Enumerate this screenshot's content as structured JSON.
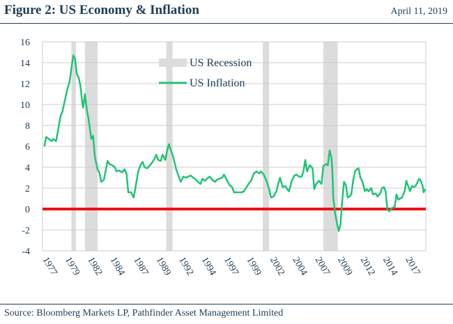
{
  "header": {
    "title": "Figure 2: US Economy & Inflation",
    "date": "April 11, 2019"
  },
  "footer": {
    "source": "Source: Bloomberg Markets LP, Pathfinder Asset Management Limited"
  },
  "colors": {
    "inflation": "#22c276",
    "zero_line": "#ee1111",
    "recession": "#dcdcdc",
    "text": "#1f3d57"
  },
  "chart_data": {
    "type": "line",
    "ylim": [
      -4,
      16
    ],
    "yticks": [
      "16",
      "14",
      "12",
      "10",
      "8",
      "6",
      "4",
      "2",
      "0",
      "-2",
      "-4"
    ],
    "yticks_values": [
      16,
      14,
      12,
      10,
      8,
      6,
      4,
      2,
      0,
      -2,
      -4
    ],
    "xlim": [
      1976.8,
      2019.25
    ],
    "xticks": [
      "1977",
      "1979",
      "1982",
      "1984",
      "1987",
      "1989",
      "1992",
      "1994",
      "1997",
      "1999",
      "2002",
      "2004",
      "2007",
      "2009",
      "2012",
      "2014",
      "2017"
    ],
    "xticks_values": [
      1976.8,
      1979.3,
      1981.8,
      1984.3,
      1986.9,
      1989.4,
      1991.9,
      1994.4,
      1996.9,
      1999.4,
      2002.0,
      2004.5,
      2007.0,
      2009.5,
      2012.0,
      2014.5,
      2017.0
    ],
    "grid": true,
    "legend": {
      "position": "top-center",
      "entries": [
        "US Recession",
        "US Inflation"
      ]
    },
    "zero_line": 0,
    "recessions": [
      {
        "start": 1980.0,
        "end": 1980.5
      },
      {
        "start": 1981.5,
        "end": 1982.9
      },
      {
        "start": 1990.5,
        "end": 1991.2
      },
      {
        "start": 2001.2,
        "end": 2001.9
      },
      {
        "start": 2007.9,
        "end": 2009.5
      }
    ],
    "series": [
      {
        "name": "US Inflation",
        "points": [
          [
            1977.0,
            6.0
          ],
          [
            1977.2,
            6.9
          ],
          [
            1977.5,
            6.7
          ],
          [
            1977.8,
            6.5
          ],
          [
            1978.0,
            6.7
          ],
          [
            1978.3,
            6.5
          ],
          [
            1978.5,
            7.4
          ],
          [
            1978.8,
            8.9
          ],
          [
            1979.0,
            9.3
          ],
          [
            1979.3,
            10.5
          ],
          [
            1979.5,
            11.3
          ],
          [
            1979.8,
            12.2
          ],
          [
            1980.0,
            13.5
          ],
          [
            1980.2,
            14.7
          ],
          [
            1980.4,
            14.4
          ],
          [
            1980.6,
            12.9
          ],
          [
            1980.8,
            12.6
          ],
          [
            1981.0,
            11.8
          ],
          [
            1981.2,
            10.2
          ],
          [
            1981.3,
            9.7
          ],
          [
            1981.5,
            11.0
          ],
          [
            1981.7,
            9.5
          ],
          [
            1981.9,
            8.6
          ],
          [
            1982.0,
            8.0
          ],
          [
            1982.2,
            6.7
          ],
          [
            1982.4,
            7.0
          ],
          [
            1982.6,
            5.0
          ],
          [
            1982.9,
            3.8
          ],
          [
            1983.1,
            3.5
          ],
          [
            1983.3,
            2.6
          ],
          [
            1983.6,
            2.8
          ],
          [
            1983.8,
            3.7
          ],
          [
            1984.0,
            4.6
          ],
          [
            1984.2,
            4.3
          ],
          [
            1984.5,
            4.2
          ],
          [
            1984.8,
            4.0
          ],
          [
            1985.0,
            3.6
          ],
          [
            1985.3,
            3.7
          ],
          [
            1985.6,
            3.5
          ],
          [
            1985.9,
            3.8
          ],
          [
            1986.1,
            3.4
          ],
          [
            1986.3,
            1.6
          ],
          [
            1986.6,
            1.6
          ],
          [
            1986.9,
            1.1
          ],
          [
            1987.1,
            2.1
          ],
          [
            1987.4,
            3.6
          ],
          [
            1987.7,
            4.3
          ],
          [
            1987.9,
            4.5
          ],
          [
            1988.1,
            4.0
          ],
          [
            1988.4,
            3.9
          ],
          [
            1988.7,
            4.2
          ],
          [
            1988.9,
            4.4
          ],
          [
            1989.2,
            4.8
          ],
          [
            1989.4,
            5.2
          ],
          [
            1989.6,
            4.7
          ],
          [
            1989.9,
            4.6
          ],
          [
            1990.1,
            5.2
          ],
          [
            1990.4,
            4.7
          ],
          [
            1990.6,
            5.6
          ],
          [
            1990.8,
            6.2
          ],
          [
            1991.0,
            5.7
          ],
          [
            1991.3,
            4.9
          ],
          [
            1991.6,
            3.8
          ],
          [
            1991.9,
            3.1
          ],
          [
            1992.1,
            2.6
          ],
          [
            1992.4,
            3.1
          ],
          [
            1992.7,
            3.0
          ],
          [
            1992.9,
            3.1
          ],
          [
            1993.2,
            3.2
          ],
          [
            1993.5,
            3.0
          ],
          [
            1993.8,
            2.8
          ],
          [
            1994.0,
            2.6
          ],
          [
            1994.3,
            2.4
          ],
          [
            1994.5,
            2.9
          ],
          [
            1994.8,
            2.7
          ],
          [
            1995.0,
            2.9
          ],
          [
            1995.3,
            3.1
          ],
          [
            1995.6,
            2.8
          ],
          [
            1995.9,
            2.6
          ],
          [
            1996.1,
            2.8
          ],
          [
            1996.4,
            2.9
          ],
          [
            1996.7,
            3.0
          ],
          [
            1996.9,
            3.3
          ],
          [
            1997.2,
            2.8
          ],
          [
            1997.5,
            2.3
          ],
          [
            1997.8,
            2.1
          ],
          [
            1998.0,
            1.6
          ],
          [
            1998.3,
            1.6
          ],
          [
            1998.6,
            1.6
          ],
          [
            1998.9,
            1.6
          ],
          [
            1999.1,
            1.7
          ],
          [
            1999.4,
            2.1
          ],
          [
            1999.7,
            2.5
          ],
          [
            1999.9,
            2.7
          ],
          [
            2000.2,
            3.4
          ],
          [
            2000.5,
            3.6
          ],
          [
            2000.8,
            3.4
          ],
          [
            2001.0,
            3.6
          ],
          [
            2001.3,
            3.3
          ],
          [
            2001.6,
            2.7
          ],
          [
            2001.9,
            1.9
          ],
          [
            2002.1,
            1.1
          ],
          [
            2002.4,
            1.2
          ],
          [
            2002.7,
            1.7
          ],
          [
            2002.9,
            2.4
          ],
          [
            2003.1,
            3.0
          ],
          [
            2003.4,
            2.1
          ],
          [
            2003.7,
            2.2
          ],
          [
            2003.9,
            1.9
          ],
          [
            2004.1,
            1.7
          ],
          [
            2004.4,
            2.7
          ],
          [
            2004.7,
            3.2
          ],
          [
            2004.9,
            3.3
          ],
          [
            2005.2,
            3.1
          ],
          [
            2005.5,
            3.1
          ],
          [
            2005.7,
            3.6
          ],
          [
            2005.9,
            4.7
          ],
          [
            2006.1,
            3.6
          ],
          [
            2006.4,
            4.2
          ],
          [
            2006.7,
            3.9
          ],
          [
            2006.9,
            1.9
          ],
          [
            2007.1,
            2.4
          ],
          [
            2007.4,
            2.7
          ],
          [
            2007.7,
            2.4
          ],
          [
            2007.9,
            4.1
          ],
          [
            2008.2,
            4.3
          ],
          [
            2008.4,
            4.2
          ],
          [
            2008.6,
            5.6
          ],
          [
            2008.8,
            4.9
          ],
          [
            2008.9,
            3.7
          ],
          [
            2009.0,
            1.1
          ],
          [
            2009.2,
            -0.4
          ],
          [
            2009.4,
            -1.3
          ],
          [
            2009.6,
            -2.1
          ],
          [
            2009.8,
            -1.5
          ],
          [
            2009.9,
            -0.2
          ],
          [
            2010.1,
            1.8
          ],
          [
            2010.2,
            2.6
          ],
          [
            2010.4,
            2.3
          ],
          [
            2010.6,
            1.1
          ],
          [
            2010.8,
            1.2
          ],
          [
            2011.0,
            1.4
          ],
          [
            2011.2,
            2.7
          ],
          [
            2011.4,
            3.6
          ],
          [
            2011.6,
            3.8
          ],
          [
            2011.8,
            3.9
          ],
          [
            2012.0,
            3.0
          ],
          [
            2012.2,
            2.7
          ],
          [
            2012.5,
            1.7
          ],
          [
            2012.7,
            1.9
          ],
          [
            2012.9,
            1.7
          ],
          [
            2013.2,
            2.0
          ],
          [
            2013.4,
            1.4
          ],
          [
            2013.7,
            1.5
          ],
          [
            2013.9,
            1.2
          ],
          [
            2014.2,
            1.5
          ],
          [
            2014.4,
            2.0
          ],
          [
            2014.6,
            2.1
          ],
          [
            2014.8,
            1.7
          ],
          [
            2015.0,
            -0.1
          ],
          [
            2015.2,
            -0.2
          ],
          [
            2015.5,
            0.1
          ],
          [
            2015.8,
            0.2
          ],
          [
            2016.0,
            1.4
          ],
          [
            2016.2,
            0.9
          ],
          [
            2016.4,
            1.0
          ],
          [
            2016.6,
            1.1
          ],
          [
            2016.9,
            1.7
          ],
          [
            2017.1,
            2.7
          ],
          [
            2017.3,
            2.2
          ],
          [
            2017.5,
            1.7
          ],
          [
            2017.7,
            2.2
          ],
          [
            2017.9,
            2.1
          ],
          [
            2018.1,
            2.2
          ],
          [
            2018.3,
            2.5
          ],
          [
            2018.5,
            2.9
          ],
          [
            2018.7,
            2.7
          ],
          [
            2018.9,
            2.2
          ],
          [
            2019.0,
            1.6
          ],
          [
            2019.2,
            1.9
          ]
        ]
      }
    ]
  }
}
